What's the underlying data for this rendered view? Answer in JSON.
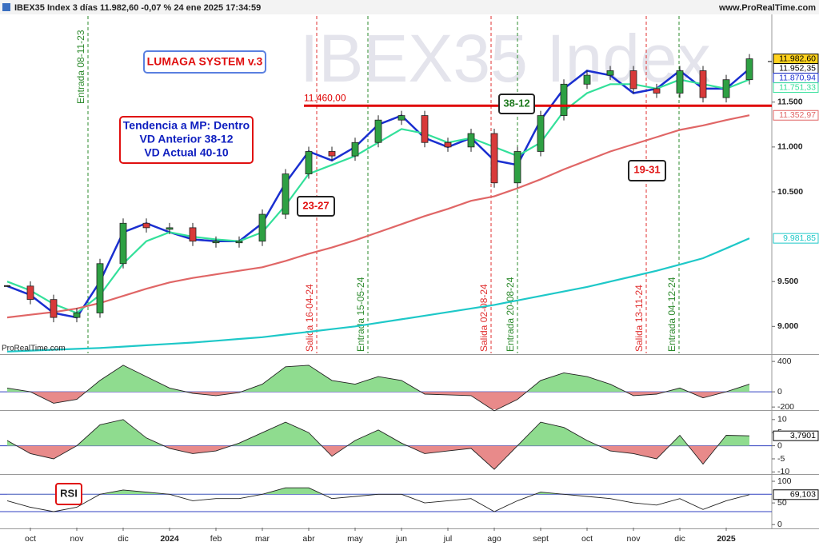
{
  "header": {
    "title": "IBEX35 Index 3 días 11.982,60 -0,07 % 24 ene 2025 17:34:59",
    "site": "www.ProRealTime.com"
  },
  "chart_data": [
    {
      "type": "price",
      "watermark": "IBEX35 Index",
      "source": "ProRealTime.com",
      "system_title": "LUMAGA SYSTEM v.3",
      "trend_box": [
        "Tendencia a MP: Dentro",
        "VD Anterior 38-12",
        "VD Actual 40-10"
      ],
      "tags": [
        "23-27",
        "38-12",
        "19-31"
      ],
      "events": [
        {
          "label": "Entrada 08-11-23",
          "color": "#2e8b2e"
        },
        {
          "label": "Salida 16-04-24",
          "color": "#e03030"
        },
        {
          "label": "Entrada 15-05-24",
          "color": "#2e8b2e"
        },
        {
          "label": "Salida 02-08-24",
          "color": "#e03030"
        },
        {
          "label": "Entrada 20-08-24",
          "color": "#2e8b2e"
        },
        {
          "label": "Salida 13-11-24",
          "color": "#e03030"
        },
        {
          "label": "Entrada 04-12-24",
          "color": "#2e8b2e"
        }
      ],
      "hline": {
        "value": 11460,
        "label": "11.460,00",
        "color": "#e00000"
      },
      "price_marks": [
        {
          "value": 11952.35,
          "label": "11.952,35"
        }
      ],
      "ylim": [
        8700,
        12460
      ],
      "yticks": [
        {
          "value": 9000,
          "label": "9.000"
        },
        {
          "value": 9500,
          "label": "9.500"
        },
        {
          "value": 10500,
          "label": "10.500"
        },
        {
          "value": 11000,
          "label": "11.000"
        },
        {
          "value": 11500,
          "label": "11.500"
        }
      ],
      "series": [
        {
          "up_color": "#2ea043",
          "down_color": "#d83a3a",
          "color": "#222222",
          "last_label": "11.982,60",
          "values": [
            9450,
            9300,
            9100,
            9150,
            9700,
            10150,
            10100,
            10100,
            9950,
            9950,
            9950,
            10250,
            10700,
            10950,
            10900,
            11050,
            11300,
            11350,
            11050,
            11000,
            11150,
            10600,
            10950,
            11350,
            11700,
            11800,
            11850,
            11650,
            11600,
            11850,
            11550,
            11750,
            11982.6
          ]
        },
        {
          "color": "#1a2fd0",
          "last_label": "11.870,94",
          "values": [
            9450,
            9350,
            9150,
            9100,
            9500,
            10050,
            10150,
            10050,
            9970,
            9950,
            9950,
            10150,
            10600,
            10950,
            10850,
            11000,
            11250,
            11350,
            11100,
            11000,
            11100,
            10850,
            10800,
            11300,
            11650,
            11850,
            11800,
            11600,
            11650,
            11850,
            11650,
            11650,
            11870.94
          ]
        },
        {
          "color": "#33e09a",
          "last_label": "11.751,33",
          "values": [
            9500,
            9400,
            9250,
            9150,
            9350,
            9700,
            9950,
            10050,
            10000,
            9970,
            9950,
            10050,
            10350,
            10700,
            10800,
            10900,
            11050,
            11200,
            11150,
            11050,
            11100,
            11000,
            10900,
            11050,
            11400,
            11600,
            11700,
            11700,
            11650,
            11750,
            11700,
            11650,
            11751.33
          ]
        },
        {
          "color": "#e06666",
          "last_label": "11.352,97",
          "values": [
            9100,
            9130,
            9160,
            9200,
            9260,
            9340,
            9420,
            9490,
            9540,
            9580,
            9620,
            9660,
            9730,
            9810,
            9880,
            9960,
            10050,
            10140,
            10230,
            10310,
            10400,
            10450,
            10540,
            10640,
            10750,
            10850,
            10950,
            11030,
            11110,
            11190,
            11240,
            11300,
            11352.97
          ]
        },
        {
          "color": "#1ec8c8",
          "last_label": "9.981,85",
          "values": [
            8720,
            8730,
            8740,
            8750,
            8760,
            8775,
            8790,
            8805,
            8820,
            8840,
            8860,
            8880,
            8910,
            8940,
            8970,
            9000,
            9040,
            9080,
            9120,
            9160,
            9200,
            9240,
            9290,
            9340,
            9390,
            9440,
            9500,
            9560,
            9620,
            9690,
            9760,
            9870,
            9981.85
          ]
        }
      ]
    },
    {
      "type": "area",
      "ylim": [
        -230,
        475
      ],
      "yticks": [
        400,
        0,
        -200
      ],
      "color": "#222222",
      "pos_color": "#8fdc8f",
      "neg_color": "#e88a8a",
      "zero_color": "#3040c0",
      "values": [
        50,
        0,
        -150,
        -100,
        150,
        350,
        200,
        50,
        -20,
        -50,
        -10,
        100,
        330,
        350,
        150,
        100,
        200,
        150,
        -30,
        -40,
        -50,
        -250,
        -100,
        150,
        250,
        200,
        100,
        -50,
        -30,
        50,
        -80,
        0,
        100
      ]
    },
    {
      "type": "area",
      "ylim": [
        -10.5,
        13
      ],
      "yticks": [
        10,
        5,
        0,
        -5,
        -10
      ],
      "color": "#222222",
      "pos_color": "#8fdc8f",
      "neg_color": "#e88a8a",
      "zero_color": "#3040c0",
      "last_label": "3,7901",
      "values": [
        2,
        -3,
        -5,
        0,
        8,
        10,
        3,
        -1,
        -3,
        -2,
        1,
        5,
        9,
        5,
        -4,
        2,
        6,
        1,
        -3,
        -2,
        -1,
        -9,
        0,
        9,
        7,
        2,
        -2,
        -3,
        -5,
        4,
        -7,
        4,
        3.7901
      ]
    },
    {
      "type": "rsi",
      "title": "RSI",
      "ylim": [
        -7,
        113
      ],
      "yticks": [
        100,
        50,
        0
      ],
      "bands": [
        30,
        70
      ],
      "band_color": "#3040c0",
      "color": "#222222",
      "pos_color": "#8fdc8f",
      "last_label": "69,103",
      "values": [
        55,
        40,
        30,
        40,
        70,
        80,
        75,
        70,
        55,
        60,
        60,
        70,
        85,
        85,
        60,
        65,
        70,
        70,
        50,
        55,
        60,
        30,
        55,
        75,
        70,
        65,
        60,
        50,
        45,
        60,
        35,
        55,
        69.103
      ],
      "categories": [
        null,
        "oct",
        null,
        "nov",
        null,
        "dic",
        null,
        "2024",
        null,
        "feb",
        null,
        "mar",
        null,
        "abr",
        null,
        "may",
        null,
        "jun",
        null,
        "jul",
        null,
        "ago",
        null,
        "sept",
        null,
        "oct",
        null,
        "nov",
        null,
        "dic",
        null,
        "2025",
        null
      ]
    }
  ]
}
